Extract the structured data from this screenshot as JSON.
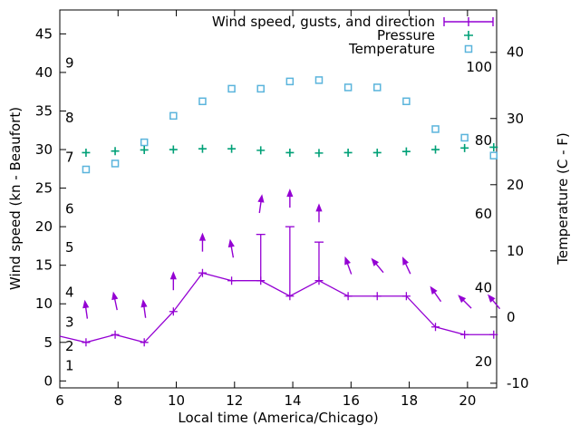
{
  "colors": {
    "wind": "#9400d3",
    "pressure": "#00a077",
    "temperature": "#5ab4dc",
    "axis": "#000000"
  },
  "chart_data": {
    "type": "line",
    "title": "",
    "xlabel": "Local time (America/Chicago)",
    "ylabel_left": "Wind speed (kn - Beaufort)",
    "ylabel_right": "Temperature (C - F)",
    "legend_position": "top-right-inside",
    "grid": false,
    "x_range": [
      6,
      21
    ],
    "x_ticks": [
      6,
      8,
      10,
      12,
      14,
      16,
      18,
      20
    ],
    "y_left_range": [
      -0.9,
      48.1
    ],
    "y_left_ticks": [
      0,
      5,
      10,
      15,
      20,
      25,
      30,
      35,
      40,
      45
    ],
    "y_right_range": [
      -10.7,
      46.4
    ],
    "y_right_ticks": [
      -10,
      0,
      10,
      20,
      30,
      40
    ],
    "beaufort_labels": [
      {
        "label": "1",
        "kn": 2.0
      },
      {
        "label": "2",
        "kn": 4.5
      },
      {
        "label": "3",
        "kn": 7.6
      },
      {
        "label": "4",
        "kn": 11.5
      },
      {
        "label": "5",
        "kn": 17.3
      },
      {
        "label": "6",
        "kn": 22.3
      },
      {
        "label": "7",
        "kn": 29.0
      },
      {
        "label": "8",
        "kn": 34.1
      },
      {
        "label": "9",
        "kn": 41.2
      }
    ],
    "fahrenheit_labels": [
      {
        "label": "20",
        "c": -6.7
      },
      {
        "label": "40",
        "c": 4.4
      },
      {
        "label": "60",
        "c": 15.6
      },
      {
        "label": "80",
        "c": 26.7
      },
      {
        "label": "100",
        "c": 37.8
      }
    ],
    "x": [
      6.9,
      7.9,
      8.9,
      9.9,
      10.9,
      11.9,
      12.9,
      13.9,
      14.9,
      15.9,
      16.9,
      17.9,
      18.9,
      19.9,
      20.9
    ],
    "series": [
      {
        "name": "Wind speed, gusts, and direction",
        "type": "line-errorbars-vectors",
        "axis": "left",
        "color": "#9400d3",
        "lead_in": {
          "x": 6.0,
          "y": 5.8
        },
        "values": [
          5,
          6,
          5,
          9,
          14,
          13,
          13,
          11,
          13,
          11,
          11,
          11,
          7,
          6,
          6
        ],
        "gusts_kn": [
          null,
          null,
          null,
          null,
          null,
          null,
          19,
          20,
          18,
          null,
          null,
          null,
          null,
          null,
          null
        ],
        "dir_deg_toward": [
          352,
          348,
          352,
          0,
          0,
          350,
          8,
          0,
          0,
          340,
          320,
          335,
          325,
          315,
          320
        ],
        "arrow_center_kn": [
          9.3,
          10.4,
          9.4,
          13,
          18,
          17.2,
          23,
          23.7,
          21.8,
          15,
          15,
          15,
          11.3,
          10.3,
          10.3
        ]
      },
      {
        "name": "Pressure",
        "type": "points",
        "marker": "plus",
        "axis": "left",
        "color": "#00a077",
        "values": [
          29.6,
          29.8,
          29.95,
          30.0,
          30.1,
          30.1,
          29.9,
          29.6,
          29.55,
          29.6,
          29.6,
          29.75,
          30.0,
          30.2,
          30.3
        ]
      },
      {
        "name": "Temperature",
        "type": "points",
        "marker": "open-square",
        "axis": "right",
        "color": "#5ab4dc",
        "values": [
          22.3,
          23.2,
          26.4,
          30.4,
          32.6,
          34.5,
          34.5,
          35.6,
          35.8,
          34.7,
          34.7,
          32.6,
          28.4,
          27.1,
          24.4
        ]
      }
    ]
  }
}
